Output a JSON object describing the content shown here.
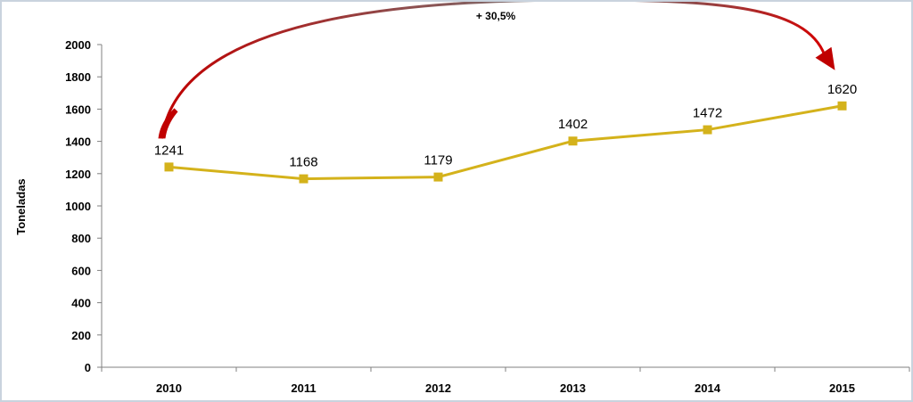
{
  "chart_data": {
    "type": "line",
    "title": "",
    "xlabel": "",
    "ylabel": "Toneladas",
    "x": [
      "2010",
      "2011",
      "2012",
      "2013",
      "2014",
      "2015"
    ],
    "series": [
      {
        "values": [
          1241,
          1168,
          1179,
          1402,
          1472,
          1620
        ],
        "color": "#d4b21b"
      }
    ],
    "data_labels": [
      "1241",
      "1168",
      "1179",
      "1402",
      "1472",
      "1620"
    ],
    "ylim": [
      0,
      2000
    ],
    "yticks": [
      0,
      200,
      400,
      600,
      800,
      1000,
      1200,
      1400,
      1600,
      1800,
      2000
    ],
    "grid": false,
    "legend": "none",
    "annotation": {
      "text": "+ 30,5%",
      "from": "2010",
      "to": "2015",
      "color": "#c00000"
    }
  }
}
